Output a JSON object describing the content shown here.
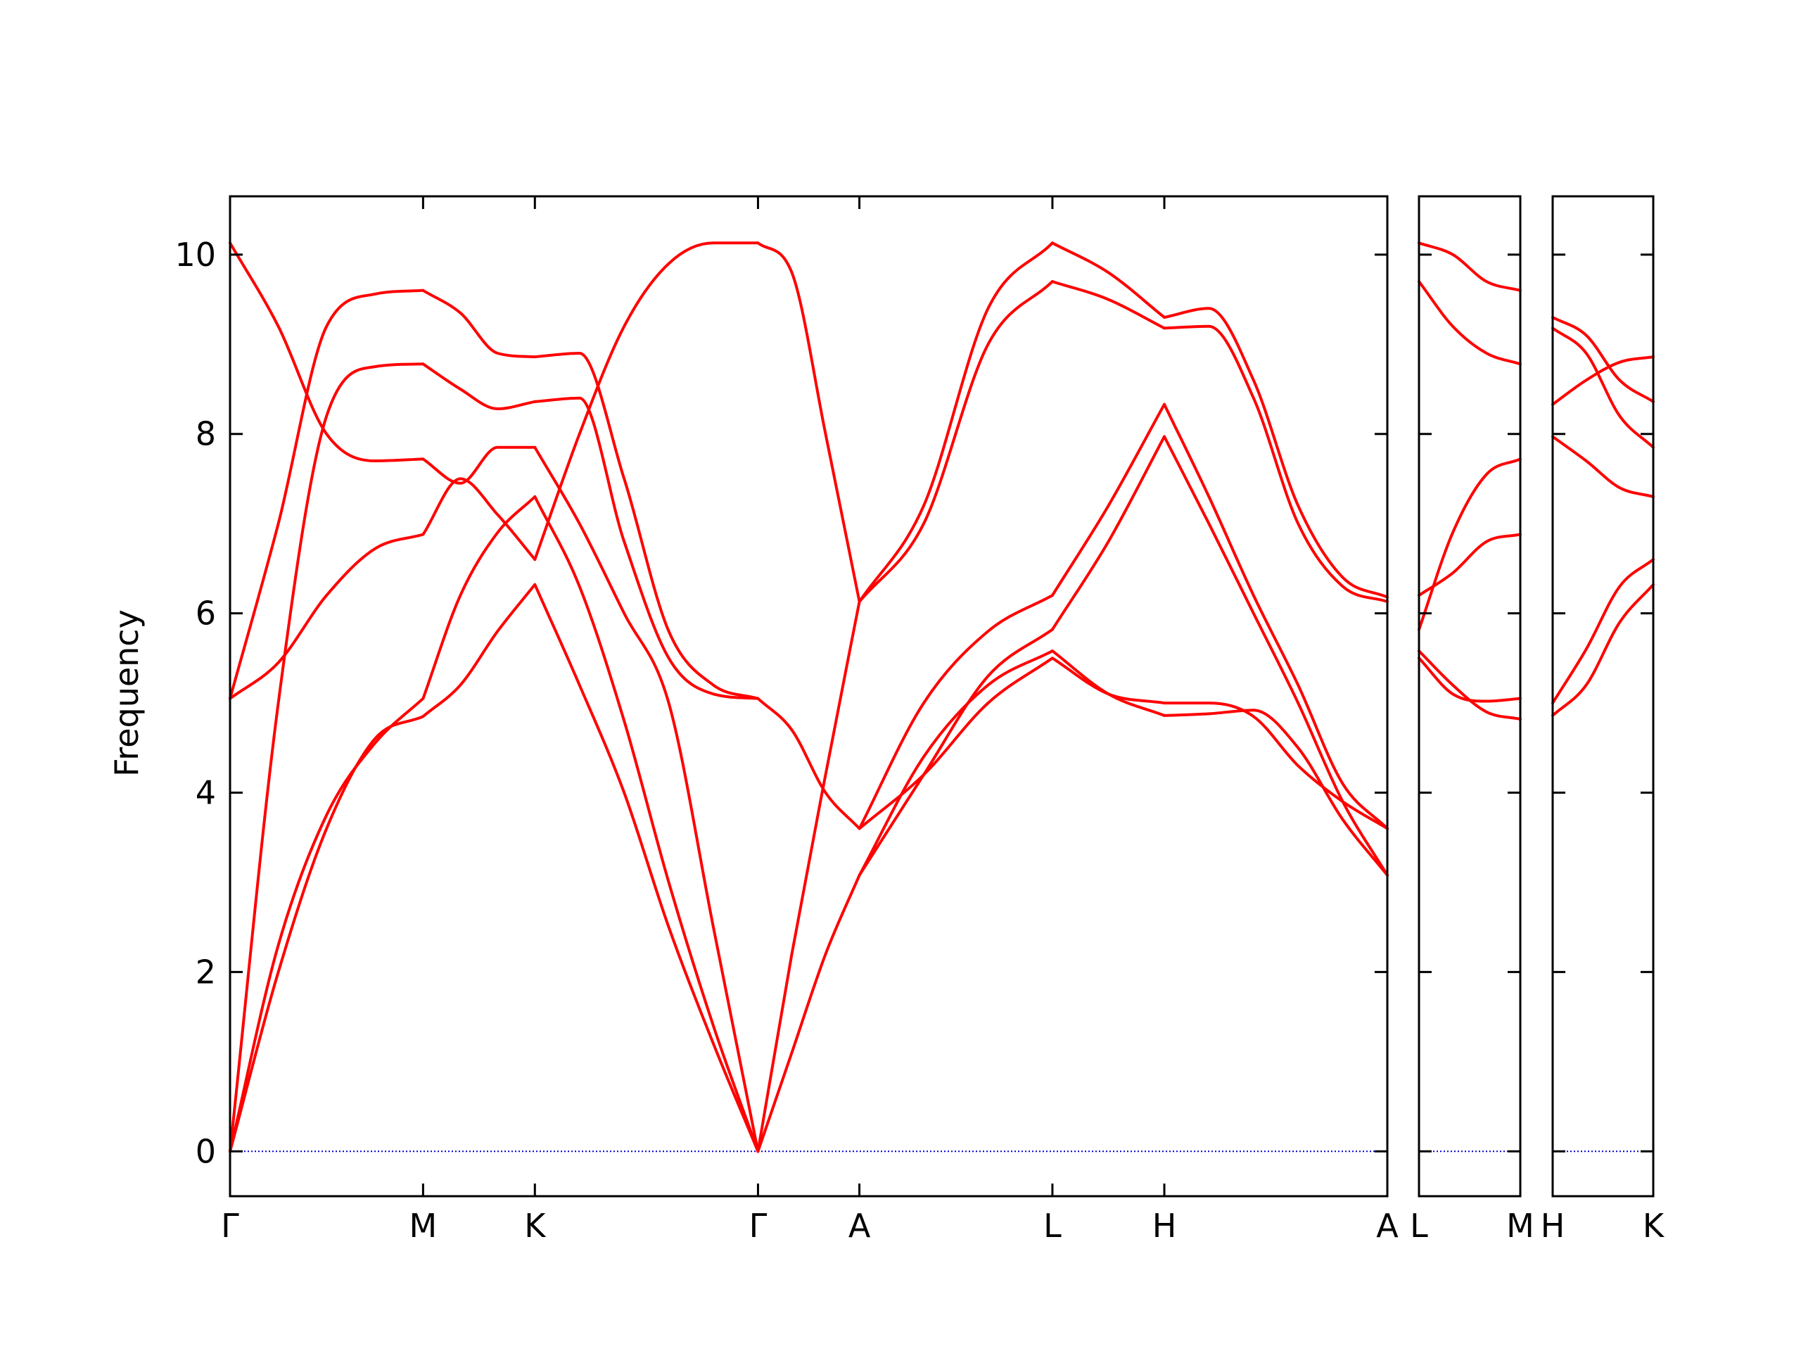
{
  "chart_data": {
    "type": "line",
    "ylabel": "Frequency",
    "ylim": [
      -0.5,
      10.65
    ],
    "yticks": [
      0,
      2,
      4,
      6,
      8,
      10
    ],
    "ytick_labels": [
      "0",
      "2",
      "4",
      "6",
      "8",
      "10"
    ],
    "line_color": "#ff0000",
    "zero_line_color": "#0000cc",
    "grid": false,
    "panels": [
      {
        "labels": [
          "Γ",
          "M",
          "K",
          "Γ",
          "A",
          "L",
          "H",
          "A"
        ],
        "segments": [
          {
            "from": "Γ",
            "to": "M",
            "bands": [
              [
                0,
                2.0,
                3.6,
                4.6,
                4.85
              ],
              [
                0,
                2.3,
                3.75,
                4.55,
                5.05
              ],
              [
                0,
                5.0,
                8.2,
                8.75,
                8.78
              ],
              [
                5.05,
                5.45,
                6.2,
                6.72,
                6.88
              ],
              [
                5.05,
                7.0,
                9.2,
                9.56,
                9.6
              ],
              [
                10.13,
                9.2,
                8.0,
                7.7,
                7.72
              ]
            ]
          },
          {
            "from": "M",
            "to": "K",
            "bands": [
              [
                4.85,
                5.2,
                5.8,
                6.32
              ],
              [
                5.05,
                6.2,
                6.9,
                7.3
              ],
              [
                8.78,
                8.5,
                8.28,
                8.36
              ],
              [
                6.88,
                7.5,
                7.1,
                6.6
              ],
              [
                9.6,
                9.35,
                8.9,
                8.86
              ],
              [
                7.72,
                7.45,
                7.85,
                7.85
              ]
            ]
          },
          {
            "from": "K",
            "to": "Γ",
            "bands": [
              [
                6.32,
                5.2,
                4.0,
                2.5,
                1.2,
                0
              ],
              [
                7.3,
                6.3,
                4.8,
                3.0,
                1.4,
                0
              ],
              [
                7.85,
                7.0,
                6.0,
                5.0,
                2.5,
                0
              ],
              [
                6.6,
                8.0,
                9.2,
                9.9,
                10.13,
                10.13
              ],
              [
                8.86,
                8.9,
                7.5,
                5.8,
                5.2,
                5.05
              ],
              [
                8.36,
                8.4,
                6.8,
                5.5,
                5.1,
                5.05
              ]
            ]
          },
          {
            "from": "Γ",
            "to": "A",
            "bands": [
              [
                0,
                1.1,
                2.2,
                3.08
              ],
              [
                0,
                2.2,
                4.2,
                6.13
              ],
              [
                10.13,
                9.8,
                8.0,
                6.13
              ],
              [
                5.05,
                4.7,
                4.0,
                3.6
              ]
            ]
          },
          {
            "from": "A",
            "to": "L",
            "bands": [
              [
                3.08,
                4.4,
                5.2,
                5.58
              ],
              [
                3.08,
                4.2,
                5.3,
                5.82
              ],
              [
                3.6,
                4.2,
                5.0,
                5.5
              ],
              [
                3.6,
                5.0,
                5.8,
                6.2
              ],
              [
                6.13,
                7.0,
                9.0,
                9.7
              ],
              [
                6.13,
                7.2,
                9.4,
                10.13
              ]
            ]
          },
          {
            "from": "L",
            "to": "H",
            "bands": [
              [
                5.58,
                5.1,
                4.86
              ],
              [
                5.5,
                5.1,
                5.0
              ],
              [
                5.82,
                6.8,
                7.97
              ],
              [
                6.2,
                7.2,
                8.33
              ],
              [
                9.7,
                9.5,
                9.18
              ],
              [
                10.13,
                9.8,
                9.3
              ]
            ]
          },
          {
            "from": "H",
            "to": "A",
            "bands": [
              [
                4.86,
                4.88,
                4.92,
                4.5,
                3.7,
                3.08
              ],
              [
                5.0,
                5.0,
                4.85,
                4.3,
                3.9,
                3.6
              ],
              [
                7.97,
                7.0,
                6.0,
                5.0,
                3.9,
                3.08
              ],
              [
                8.33,
                7.3,
                6.2,
                5.2,
                4.1,
                3.6
              ],
              [
                9.18,
                9.2,
                8.4,
                7.0,
                6.3,
                6.13
              ],
              [
                9.3,
                9.4,
                8.6,
                7.2,
                6.4,
                6.18
              ]
            ]
          }
        ]
      },
      {
        "labels": [
          "L",
          "M"
        ],
        "segments": [
          {
            "from": "L",
            "to": "M",
            "bands": [
              [
                5.5,
                5.1,
                5.02,
                5.05
              ],
              [
                5.58,
                5.2,
                4.9,
                4.82
              ],
              [
                5.82,
                6.9,
                7.55,
                7.72
              ],
              [
                6.2,
                6.45,
                6.8,
                6.88
              ],
              [
                9.7,
                9.2,
                8.9,
                8.78
              ],
              [
                10.13,
                10.0,
                9.7,
                9.6
              ]
            ]
          }
        ]
      },
      {
        "labels": [
          "H",
          "K"
        ],
        "segments": [
          {
            "from": "H",
            "to": "K",
            "bands": [
              [
                4.86,
                5.2,
                5.9,
                6.32
              ],
              [
                5.0,
                5.6,
                6.3,
                6.6
              ],
              [
                7.97,
                7.7,
                7.4,
                7.3
              ],
              [
                8.33,
                8.6,
                8.8,
                8.86
              ],
              [
                9.18,
                8.9,
                8.2,
                7.85
              ],
              [
                9.3,
                9.1,
                8.6,
                8.36
              ]
            ]
          }
        ]
      }
    ]
  }
}
